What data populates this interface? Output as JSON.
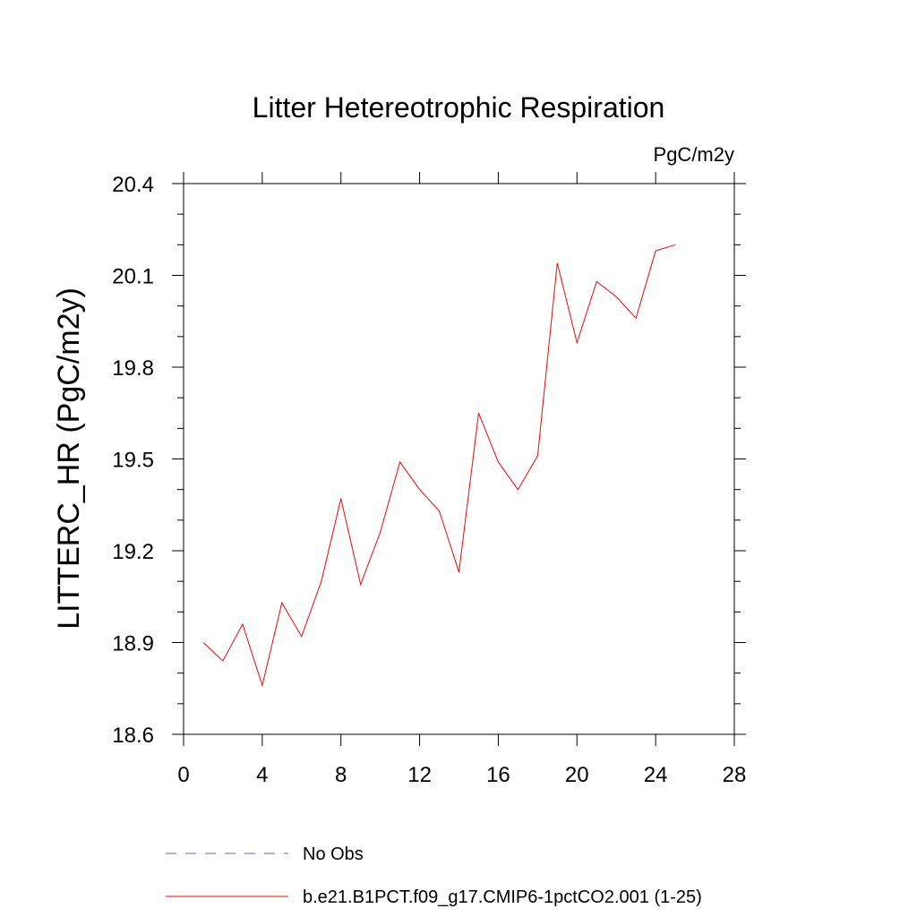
{
  "chart_data": {
    "type": "line",
    "title": "Litter Hetereotrophic Respiration",
    "units_label": "PgC/m2y",
    "ylabel": "LITTERC_HR  (PgC/m2y)",
    "xlabel": "",
    "xlim": [
      0,
      28
    ],
    "ylim": [
      18.6,
      20.4
    ],
    "x_ticks": [
      "0",
      "4",
      "8",
      "12",
      "16",
      "20",
      "24",
      "28"
    ],
    "y_ticks": [
      "18.6",
      "18.9",
      "19.2",
      "19.5",
      "19.8",
      "20.1",
      "20.4"
    ],
    "grid": false,
    "legend_position": "bottom",
    "series": [
      {
        "name": "No Obs",
        "color": "#6a5acd",
        "style": "dashed",
        "x": [],
        "y": []
      },
      {
        "name": "b.e21.B1PCT.f09_g17.CMIP6-1pctCO2.001 (1-25)",
        "color": "#ff0000",
        "style": "solid",
        "x": [
          1,
          2,
          3,
          4,
          5,
          6,
          7,
          8,
          9,
          10,
          11,
          12,
          13,
          14,
          15,
          16,
          17,
          18,
          19,
          20,
          21,
          22,
          23,
          24,
          25
        ],
        "y": [
          18.9,
          18.84,
          18.96,
          18.76,
          19.03,
          18.92,
          19.1,
          19.37,
          19.09,
          19.26,
          19.49,
          19.4,
          19.33,
          19.13,
          19.65,
          19.49,
          19.4,
          19.51,
          20.14,
          19.88,
          20.08,
          20.03,
          19.96,
          20.18,
          20.2
        ]
      }
    ]
  }
}
